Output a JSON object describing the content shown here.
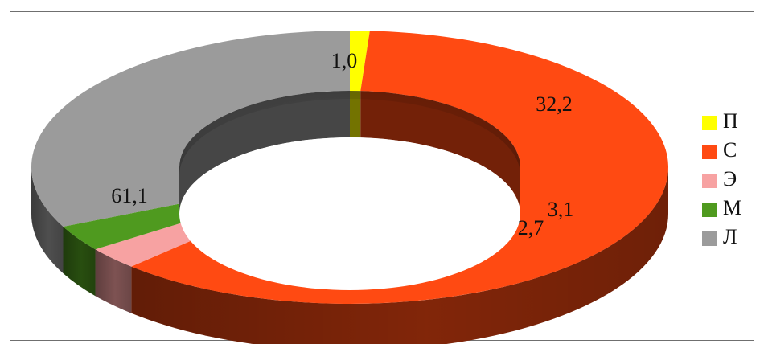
{
  "chart_data": {
    "type": "pie",
    "variant": "3d-donut",
    "title": "",
    "categories": [
      "П",
      "С",
      "Э",
      "М",
      "Л"
    ],
    "values": [
      1.0,
      61.1,
      2.7,
      3.1,
      32.2
    ],
    "value_labels": [
      "1,0",
      "61,1",
      "2,7",
      "3,1",
      "32,2"
    ],
    "colors": [
      "#ffff00",
      "#ff4a12",
      "#f7a2a2",
      "#4f9a1f",
      "#9b9b9b"
    ],
    "legend_placement": "right",
    "order": "clockwise from top"
  }
}
